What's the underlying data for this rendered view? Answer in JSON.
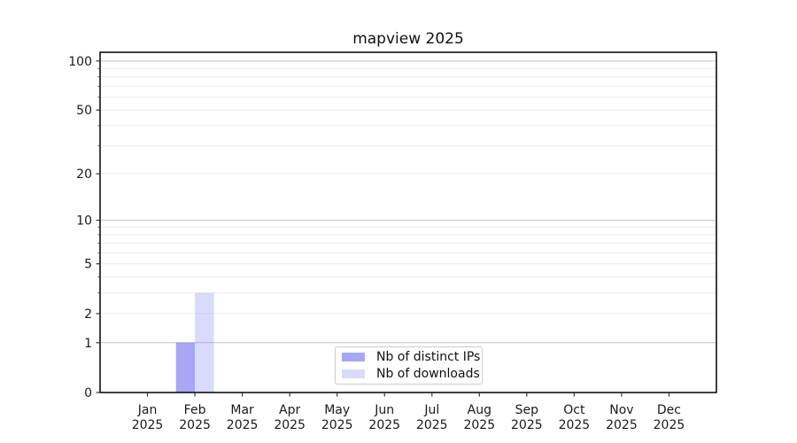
{
  "chart_data": {
    "type": "bar",
    "title": "mapview 2025",
    "categories": [
      "Jan",
      "Feb",
      "Mar",
      "Apr",
      "May",
      "Jun",
      "Jul",
      "Aug",
      "Sep",
      "Oct",
      "Nov",
      "Dec"
    ],
    "category_year": "2025",
    "series": [
      {
        "name": "Nb of distinct IPs",
        "base_color": "#6464f0",
        "alpha": 0.57,
        "values": [
          0,
          1,
          0,
          0,
          0,
          0,
          0,
          0,
          0,
          0,
          0,
          0
        ]
      },
      {
        "name": "Nb of downloads",
        "base_color": "#6464f0",
        "alpha": 0.24,
        "values": [
          0,
          3,
          0,
          0,
          0,
          0,
          0,
          0,
          0,
          0,
          0,
          0
        ]
      }
    ],
    "y_axis": {
      "scale": "log10(value+1)",
      "labeled_ticks": [
        0,
        1,
        2,
        5,
        10,
        20,
        50,
        100
      ],
      "major_grid": [
        1,
        10,
        100
      ],
      "minor_grid": [
        2,
        3,
        4,
        5,
        6,
        7,
        8,
        9,
        20,
        30,
        40,
        50,
        60,
        70,
        80,
        90
      ],
      "max": 113
    },
    "legend": {
      "position": "lower center",
      "entries": [
        "Nb of distinct IPs",
        "Nb of downloads"
      ]
    },
    "grid": true,
    "colors": {
      "grid_major": "#c3c3c3",
      "grid_minor": "#ececec",
      "axis": "#000000",
      "tick": "#333333",
      "text": "#1a1a1a",
      "background": "#ffffff"
    }
  }
}
